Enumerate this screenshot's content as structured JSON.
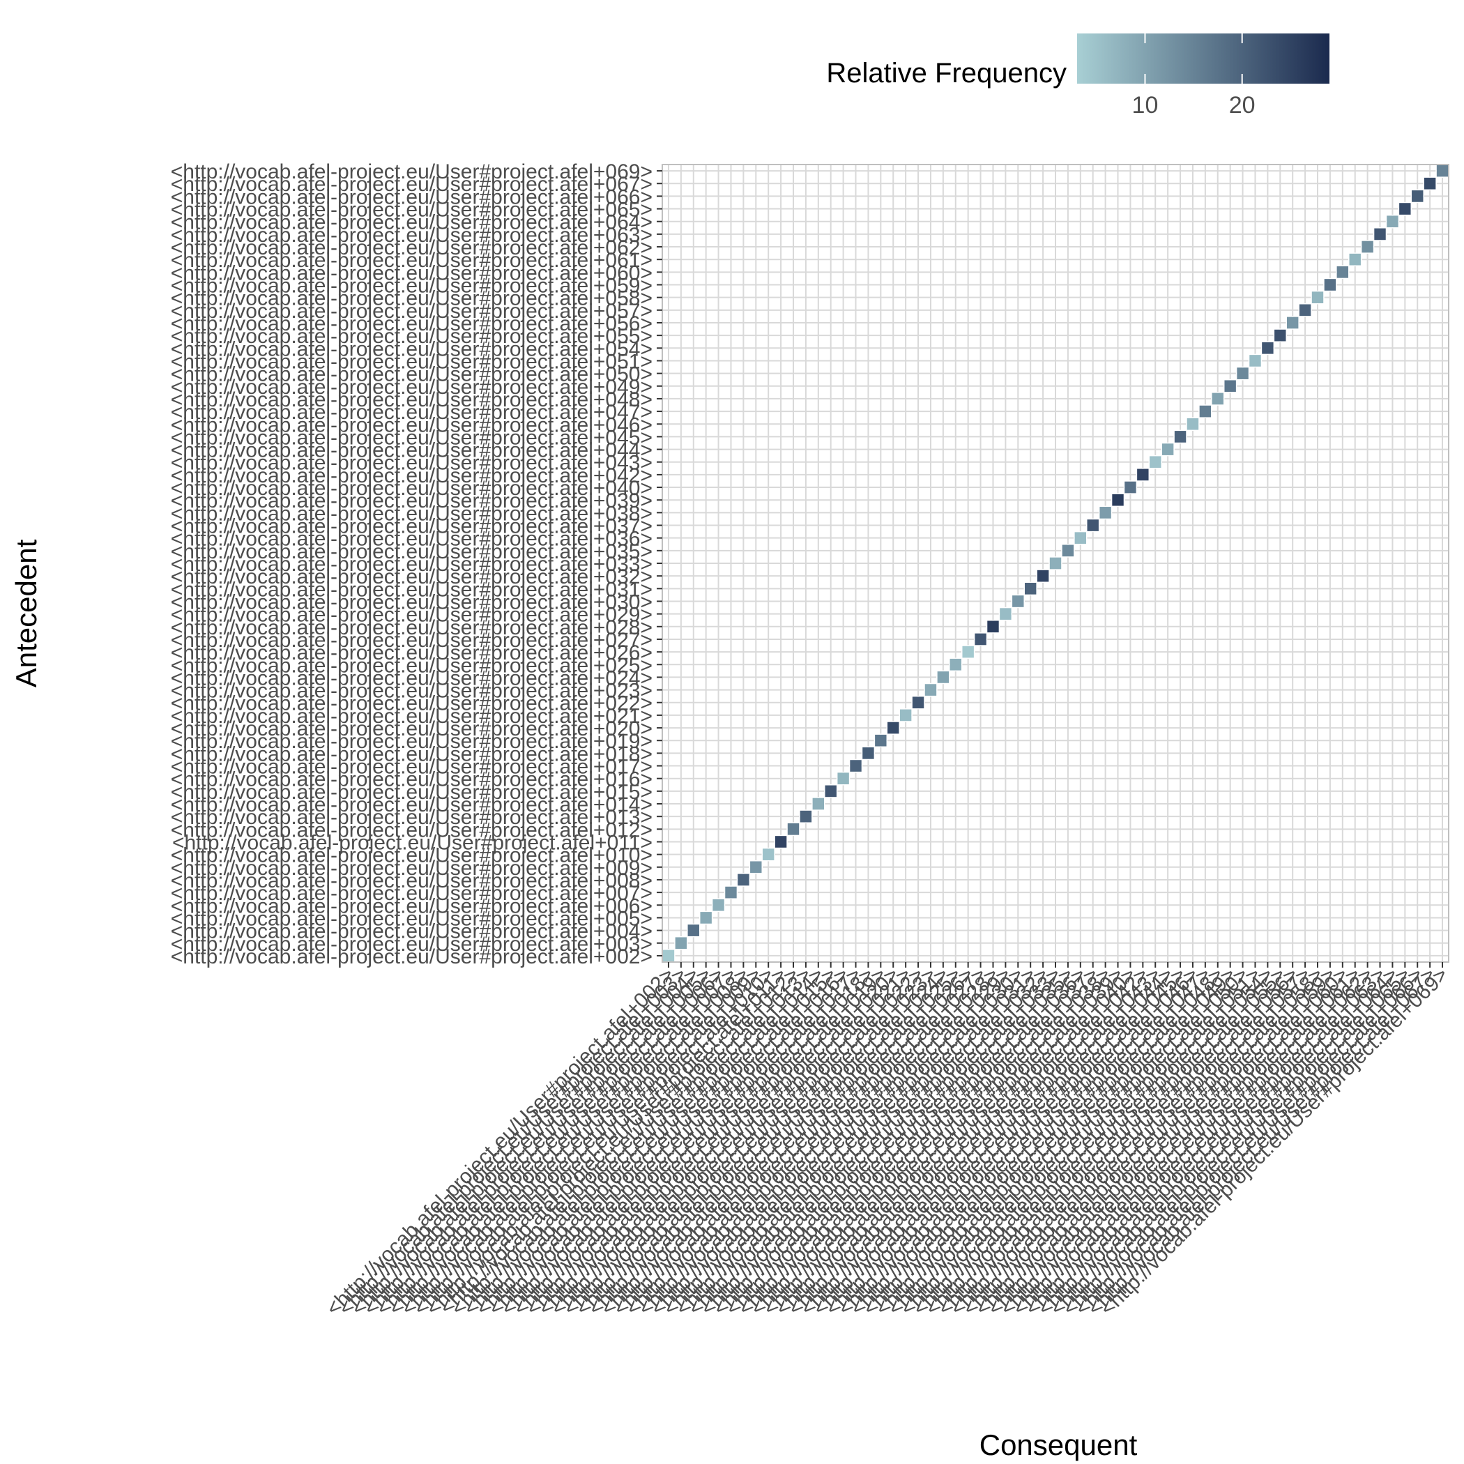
{
  "chart_data": {
    "type": "heatmap",
    "xlabel": "Consequent",
    "ylabel": "Antecedent",
    "categories": [
      "<http://vocab.afel-project.eu/User#project.afel+002>",
      "<http://vocab.afel-project.eu/User#project.afel+003>",
      "<http://vocab.afel-project.eu/User#project.afel+004>",
      "<http://vocab.afel-project.eu/User#project.afel+005>",
      "<http://vocab.afel-project.eu/User#project.afel+006>",
      "<http://vocab.afel-project.eu/User#project.afel+007>",
      "<http://vocab.afel-project.eu/User#project.afel+008>",
      "<http://vocab.afel-project.eu/User#project.afel+009>",
      "<http://vocab.afel-project.eu/User#project.afel+010>",
      "<http://vocab.afel-project.eu/User#project.afel+011>",
      "<http://vocab.afel-project.eu/User#project.afel+012>",
      "<http://vocab.afel-project.eu/User#project.afel+013>",
      "<http://vocab.afel-project.eu/User#project.afel+014>",
      "<http://vocab.afel-project.eu/User#project.afel+015>",
      "<http://vocab.afel-project.eu/User#project.afel+016>",
      "<http://vocab.afel-project.eu/User#project.afel+017>",
      "<http://vocab.afel-project.eu/User#project.afel+018>",
      "<http://vocab.afel-project.eu/User#project.afel+019>",
      "<http://vocab.afel-project.eu/User#project.afel+020>",
      "<http://vocab.afel-project.eu/User#project.afel+021>",
      "<http://vocab.afel-project.eu/User#project.afel+022>",
      "<http://vocab.afel-project.eu/User#project.afel+023>",
      "<http://vocab.afel-project.eu/User#project.afel+024>",
      "<http://vocab.afel-project.eu/User#project.afel+025>",
      "<http://vocab.afel-project.eu/User#project.afel+026>",
      "<http://vocab.afel-project.eu/User#project.afel+027>",
      "<http://vocab.afel-project.eu/User#project.afel+028>",
      "<http://vocab.afel-project.eu/User#project.afel+029>",
      "<http://vocab.afel-project.eu/User#project.afel+030>",
      "<http://vocab.afel-project.eu/User#project.afel+031>",
      "<http://vocab.afel-project.eu/User#project.afel+032>",
      "<http://vocab.afel-project.eu/User#project.afel+033>",
      "<http://vocab.afel-project.eu/User#project.afel+035>",
      "<http://vocab.afel-project.eu/User#project.afel+036>",
      "<http://vocab.afel-project.eu/User#project.afel+037>",
      "<http://vocab.afel-project.eu/User#project.afel+038>",
      "<http://vocab.afel-project.eu/User#project.afel+039>",
      "<http://vocab.afel-project.eu/User#project.afel+040>",
      "<http://vocab.afel-project.eu/User#project.afel+042>",
      "<http://vocab.afel-project.eu/User#project.afel+043>",
      "<http://vocab.afel-project.eu/User#project.afel+044>",
      "<http://vocab.afel-project.eu/User#project.afel+045>",
      "<http://vocab.afel-project.eu/User#project.afel+046>",
      "<http://vocab.afel-project.eu/User#project.afel+047>",
      "<http://vocab.afel-project.eu/User#project.afel+048>",
      "<http://vocab.afel-project.eu/User#project.afel+049>",
      "<http://vocab.afel-project.eu/User#project.afel+050>",
      "<http://vocab.afel-project.eu/User#project.afel+051>",
      "<http://vocab.afel-project.eu/User#project.afel+054>",
      "<http://vocab.afel-project.eu/User#project.afel+055>",
      "<http://vocab.afel-project.eu/User#project.afel+056>",
      "<http://vocab.afel-project.eu/User#project.afel+057>",
      "<http://vocab.afel-project.eu/User#project.afel+058>",
      "<http://vocab.afel-project.eu/User#project.afel+059>",
      "<http://vocab.afel-project.eu/User#project.afel+060>",
      "<http://vocab.afel-project.eu/User#project.afel+061>",
      "<http://vocab.afel-project.eu/User#project.afel+062>",
      "<http://vocab.afel-project.eu/User#project.afel+063>",
      "<http://vocab.afel-project.eu/User#project.afel+064>",
      "<http://vocab.afel-project.eu/User#project.afel+065>",
      "<http://vocab.afel-project.eu/User#project.afel+066>",
      "<http://vocab.afel-project.eu/User#project.afel+067>",
      "<http://vocab.afel-project.eu/User#project.afel+069>"
    ],
    "values": [
      4,
      10,
      18,
      9,
      8,
      14,
      20,
      12,
      5,
      25,
      16,
      20,
      8,
      22,
      7,
      20,
      21,
      17,
      24,
      6,
      22,
      9,
      10,
      8,
      4,
      22,
      26,
      6,
      12,
      20,
      25,
      8,
      14,
      6,
      22,
      11,
      26,
      18,
      25,
      5,
      9,
      20,
      6,
      16,
      10,
      17,
      14,
      6,
      22,
      23,
      12,
      20,
      7,
      18,
      15,
      7,
      13,
      22,
      9,
      24,
      21,
      24,
      15
    ],
    "legend": {
      "title": "Relative Frequency",
      "ticks": [
        10,
        20
      ],
      "min": 3,
      "max": 29,
      "low_color": "#a8cfd4",
      "high_color": "#1b2a4e",
      "position": "top"
    },
    "grid": true,
    "gridline_color": "#d9d9d9"
  }
}
